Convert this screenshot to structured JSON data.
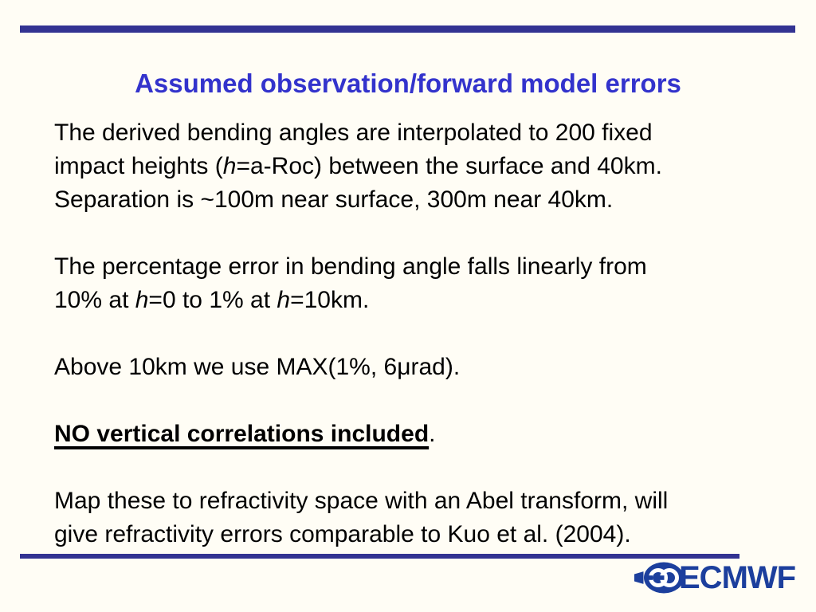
{
  "title": "Assumed observation/forward model errors",
  "colors": {
    "rule": "#333392",
    "title": "#3333cc",
    "body_text": "#000000",
    "logo_blue": "#1c3f9d",
    "background": "#fffdf5"
  },
  "body": {
    "paragraphs": [
      {
        "lines": [
          [
            {
              "t": "The derived bending angles are interpolated to 200 fixed"
            }
          ],
          [
            {
              "t": "impact heights ("
            },
            {
              "t": "h",
              "s": "italic"
            },
            {
              "t": "=a-Roc) between the surface and 40km."
            }
          ],
          [
            {
              "t": "Separation is ~100m near surface, 300m near 40km."
            }
          ]
        ]
      },
      {
        "lines": [
          [
            {
              "t": "The percentage error in bending angle falls linearly from"
            }
          ],
          [
            {
              "t": "10% at "
            },
            {
              "t": "h",
              "s": "italic"
            },
            {
              "t": "=0 to 1% at "
            },
            {
              "t": "h",
              "s": "italic"
            },
            {
              "t": "=10km."
            }
          ]
        ]
      },
      {
        "lines": [
          [
            {
              "t": "Above 10km we use MAX(1%, 6μrad)."
            }
          ]
        ]
      },
      {
        "lines": [
          [
            {
              "t": "NO vertical correlations included",
              "s": "bold-underline"
            },
            {
              "t": "."
            }
          ]
        ]
      },
      {
        "lines": [
          [
            {
              "t": "Map these to refractivity space with an Abel transform, will"
            }
          ],
          [
            {
              "t": "give refractivity errors comparable to Kuo et al. (2004)."
            }
          ]
        ]
      }
    ]
  },
  "logo": {
    "text": "ECMWF",
    "icon": "ecmwf-globe-icon"
  }
}
